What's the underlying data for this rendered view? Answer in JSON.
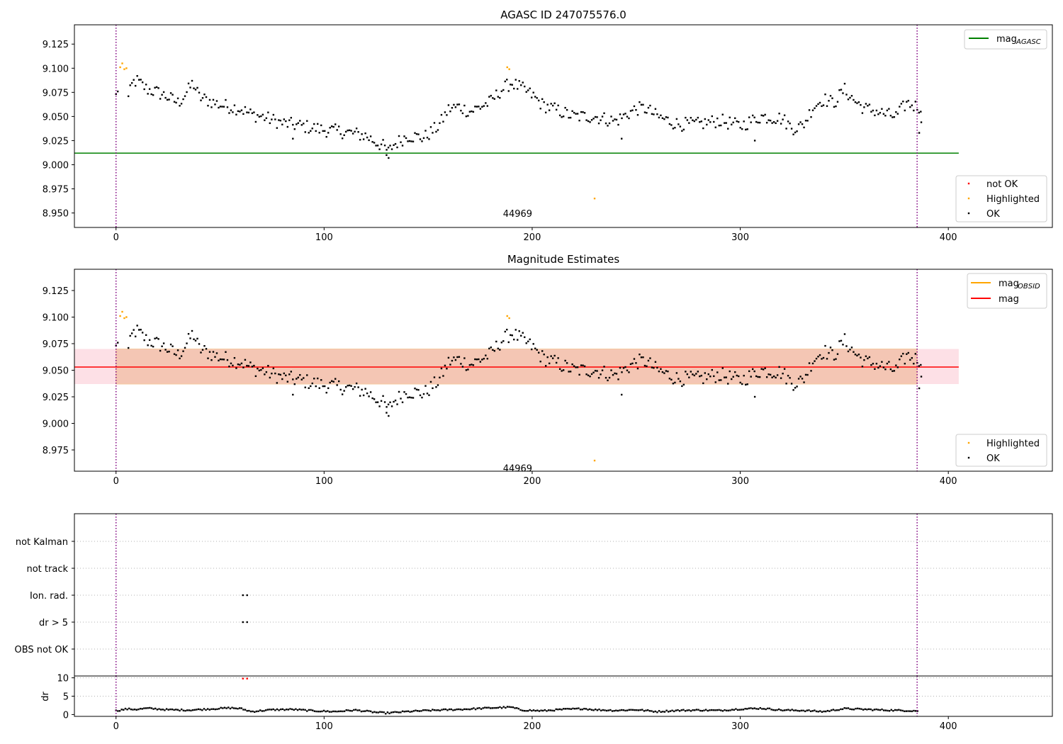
{
  "figure": {
    "colors": {
      "ok": "#000000",
      "highlighted": "#ffa500",
      "not_ok": "#ff0000",
      "agasc_line": "#008000",
      "obsid_line": "#ffa500",
      "mag_line": "#ff0000",
      "band": "#f4c6b4",
      "band_pink": "#fde0e6",
      "vline": "#800080",
      "grid": "#b0b0b0"
    }
  },
  "chart_data": [
    {
      "type": "scatter",
      "title": "AGASC ID 247075576.0",
      "xlim": [
        -20,
        450
      ],
      "ylim": [
        8.935,
        9.145
      ],
      "xticks": [
        0,
        100,
        200,
        300,
        400
      ],
      "yticks": [
        8.95,
        8.975,
        9.0,
        9.025,
        9.05,
        9.075,
        9.1,
        9.125
      ],
      "ytick_labels": [
        "8.950",
        "8.975",
        "9.000",
        "9.025",
        "9.050",
        "9.075",
        "9.100",
        "9.125"
      ],
      "vlines": [
        0,
        385
      ],
      "hlines": [
        {
          "y": 9.012,
          "x": [
            -20,
            405
          ],
          "label": "mag_{AGASC}"
        }
      ],
      "annotation": {
        "text": "44969",
        "x": 193,
        "y": 8.94
      },
      "legend_top": [
        {
          "label": "mag",
          "sub": "AGASC",
          "color_key": "agasc_line"
        }
      ],
      "legend_bottom": [
        {
          "label": "not OK",
          "color_key": "not_ok"
        },
        {
          "label": "Highlighted",
          "color_key": "highlighted"
        },
        {
          "label": "OK",
          "color_key": "ok"
        }
      ],
      "series": [
        {
          "name": "Highlighted",
          "points": [
            [
              2,
              9.101
            ],
            [
              3,
              9.105
            ],
            [
              4,
              9.099
            ],
            [
              5,
              9.1
            ],
            [
              188,
              9.101
            ],
            [
              189,
              9.099
            ],
            [
              230,
              8.965
            ]
          ]
        },
        {
          "name": "OK",
          "anchors": [
            [
              0,
              9.071
            ],
            [
              1,
              9.08
            ],
            [
              6,
              9.069
            ],
            [
              8,
              9.085
            ],
            [
              10,
              9.087
            ],
            [
              15,
              9.078
            ],
            [
              20,
              9.075
            ],
            [
              25,
              9.07
            ],
            [
              30,
              9.064
            ],
            [
              35,
              9.078
            ],
            [
              37,
              9.085
            ],
            [
              40,
              9.07
            ],
            [
              50,
              9.062
            ],
            [
              60,
              9.058
            ],
            [
              65,
              9.052
            ],
            [
              70,
              9.05
            ],
            [
              80,
              9.043
            ],
            [
              90,
              9.04
            ],
            [
              100,
              9.036
            ],
            [
              110,
              9.034
            ],
            [
              120,
              9.03
            ],
            [
              126,
              9.022
            ],
            [
              128,
              9.02
            ],
            [
              131,
              9.013
            ],
            [
              133,
              9.02
            ],
            [
              140,
              9.03
            ],
            [
              148,
              9.028
            ],
            [
              155,
              9.04
            ],
            [
              160,
              9.058
            ],
            [
              165,
              9.06
            ],
            [
              170,
              9.055
            ],
            [
              180,
              9.065
            ],
            [
              185,
              9.077
            ],
            [
              190,
              9.085
            ],
            [
              195,
              9.079
            ],
            [
              200,
              9.072
            ],
            [
              205,
              9.062
            ],
            [
              210,
              9.058
            ],
            [
              220,
              9.05
            ],
            [
              230,
              9.05
            ],
            [
              240,
              9.045
            ],
            [
              250,
              9.058
            ],
            [
              255,
              9.058
            ],
            [
              260,
              9.05
            ],
            [
              270,
              9.042
            ],
            [
              280,
              9.042
            ],
            [
              290,
              9.046
            ],
            [
              300,
              9.04
            ],
            [
              310,
              9.05
            ],
            [
              320,
              9.048
            ],
            [
              325,
              9.038
            ],
            [
              330,
              9.04
            ],
            [
              335,
              9.06
            ],
            [
              340,
              9.068
            ],
            [
              345,
              9.064
            ],
            [
              350,
              9.078
            ],
            [
              355,
              9.066
            ],
            [
              360,
              9.058
            ],
            [
              365,
              9.056
            ],
            [
              370,
              9.052
            ],
            [
              375,
              9.05
            ],
            [
              380,
              9.064
            ],
            [
              385,
              9.06
            ]
          ],
          "extra": [
            [
              130,
              9.01
            ],
            [
              131,
              9.007
            ],
            [
              243,
              9.027
            ],
            [
              307,
              9.025
            ],
            [
              85,
              9.027
            ],
            [
              386,
              9.033
            ],
            [
              387,
              9.044
            ]
          ]
        }
      ]
    },
    {
      "type": "scatter",
      "title": "Magnitude Estimates",
      "xlim": [
        -20,
        450
      ],
      "ylim": [
        8.955,
        9.145
      ],
      "xticks": [
        0,
        100,
        200,
        300,
        400
      ],
      "yticks": [
        8.975,
        9.0,
        9.025,
        9.05,
        9.075,
        9.1,
        9.125
      ],
      "ytick_labels": [
        "8.975",
        "9.000",
        "9.025",
        "9.050",
        "9.075",
        "9.100",
        "9.125"
      ],
      "vlines": [
        0,
        385
      ],
      "hlines": [
        {
          "y": 9.053,
          "x": [
            -20,
            405
          ],
          "label": "mag"
        }
      ],
      "band": {
        "y": [
          9.037,
          9.07
        ],
        "x": [
          -20,
          405
        ]
      },
      "annotation": {
        "text": "44969",
        "x": 193,
        "y": 8.958
      },
      "legend_top": [
        {
          "label": "mag",
          "sub": "OBSID",
          "color_key": "obsid_line"
        },
        {
          "label": "mag",
          "sub": "",
          "color_key": "mag_line"
        }
      ],
      "legend_bottom": [
        {
          "label": "Highlighted",
          "color_key": "highlighted"
        },
        {
          "label": "OK",
          "color_key": "ok"
        }
      ]
    },
    {
      "type": "scatter",
      "title": "",
      "xlim": [
        -20,
        450
      ],
      "categories": [
        "OBS not OK",
        "dr > 5",
        "Ion. rad.",
        "not track",
        "not Kalman"
      ],
      "flag_points": [
        {
          "category": "Ion. rad.",
          "x": [
            61,
            63
          ]
        },
        {
          "category": "dr > 5",
          "x": [
            61,
            63
          ]
        }
      ],
      "vlines": [
        0,
        385
      ]
    },
    {
      "type": "scatter",
      "title": "",
      "ylabel": "dr",
      "xlim": [
        -20,
        450
      ],
      "ylim": [
        -0.5,
        10.5
      ],
      "yticks": [
        0,
        5,
        10
      ],
      "ytick_labels": [
        "0",
        "5",
        "10"
      ],
      "xticks": [
        0,
        100,
        200,
        300,
        400
      ],
      "vlines": [
        0,
        385
      ],
      "not_ok_points": [
        [
          61,
          9.8
        ],
        [
          63,
          9.8
        ]
      ],
      "dr_anchors": [
        [
          0,
          1.0
        ],
        [
          5,
          1.5
        ],
        [
          10,
          1.4
        ],
        [
          15,
          1.7
        ],
        [
          25,
          1.3
        ],
        [
          35,
          1.2
        ],
        [
          45,
          1.5
        ],
        [
          55,
          1.8
        ],
        [
          60,
          1.6
        ],
        [
          65,
          0.8
        ],
        [
          75,
          1.3
        ],
        [
          85,
          1.4
        ],
        [
          95,
          1.0
        ],
        [
          105,
          0.8
        ],
        [
          115,
          1.2
        ],
        [
          125,
          0.6
        ],
        [
          130,
          0.4
        ],
        [
          140,
          0.8
        ],
        [
          150,
          1.1
        ],
        [
          160,
          1.3
        ],
        [
          170,
          1.5
        ],
        [
          180,
          1.8
        ],
        [
          190,
          2.0
        ],
        [
          195,
          1.2
        ],
        [
          205,
          1.0
        ],
        [
          215,
          1.4
        ],
        [
          225,
          1.6
        ],
        [
          230,
          1.3
        ],
        [
          240,
          1.1
        ],
        [
          250,
          1.3
        ],
        [
          260,
          0.8
        ],
        [
          270,
          1.1
        ],
        [
          280,
          1.2
        ],
        [
          290,
          1.1
        ],
        [
          300,
          1.5
        ],
        [
          310,
          1.7
        ],
        [
          320,
          1.2
        ],
        [
          330,
          1.1
        ],
        [
          340,
          0.8
        ],
        [
          350,
          1.6
        ],
        [
          360,
          1.4
        ],
        [
          370,
          1.2
        ],
        [
          385,
          1.0
        ]
      ]
    }
  ]
}
